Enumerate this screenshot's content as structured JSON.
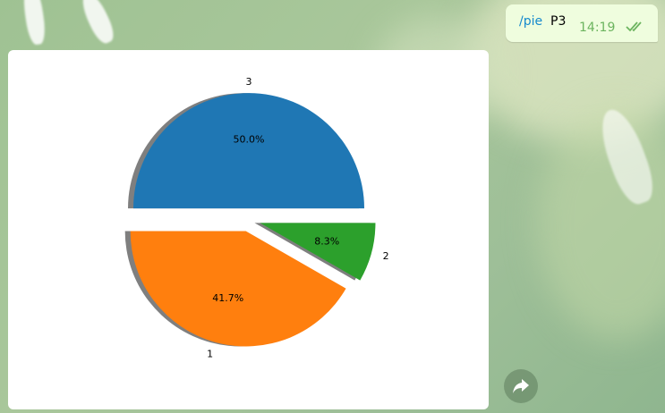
{
  "message": {
    "command": "/pie",
    "argument": "P3",
    "time": "14:19",
    "status_icon": "double-check-icon"
  },
  "colors": {
    "bubble": "#effdde",
    "command_link": "#168acd",
    "time": "#6cb45f",
    "slice_1": "#ff7f0e",
    "slice_2": "#2ca02c",
    "slice_3": "#1f77b4"
  },
  "chart_data": {
    "type": "pie",
    "title": "",
    "shadow": true,
    "exploded": true,
    "start_angle": 180,
    "slices": [
      {
        "label": "1",
        "value": 41.7,
        "pct_label": "41.7%",
        "color": "#ff7f0e"
      },
      {
        "label": "2",
        "value": 8.3,
        "pct_label": "8.3%",
        "color": "#2ca02c"
      },
      {
        "label": "3",
        "value": 50.0,
        "pct_label": "50.0%",
        "color": "#1f77b4"
      }
    ]
  },
  "forward_icon": "share-arrow-icon"
}
